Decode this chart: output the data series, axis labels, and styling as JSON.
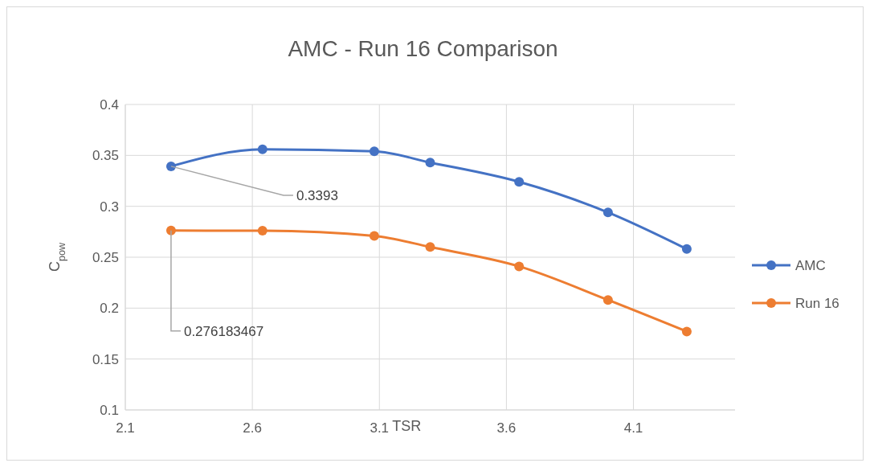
{
  "chart_data": {
    "type": "line",
    "title": "AMC - Run 16 Comparison",
    "xlabel": "TSR",
    "ylabel": "C$_{pow}$",
    "x": [
      2.28,
      2.64,
      3.08,
      3.3,
      3.65,
      4.0,
      4.31
    ],
    "series": [
      {
        "name": "AMC",
        "color": "#4472c4",
        "values": [
          0.3393,
          0.356,
          0.354,
          0.343,
          0.324,
          0.294,
          0.258
        ]
      },
      {
        "name": "Run 16",
        "color": "#ed7d31",
        "values": [
          0.276183467,
          0.276,
          0.271,
          0.26,
          0.241,
          0.208,
          0.177
        ]
      }
    ],
    "annotations": [
      {
        "text": "0.3393",
        "x": 2.28,
        "y": 0.3393
      },
      {
        "text": "0.276183467",
        "x": 2.28,
        "y": 0.276183467
      }
    ],
    "xlim": [
      2.1,
      4.5
    ],
    "xticks": [
      2.1,
      2.6,
      3.1,
      3.6,
      4.1
    ],
    "ylim": [
      0.1,
      0.4
    ],
    "yticks": [
      0.1,
      0.15,
      0.2,
      0.25,
      0.3,
      0.35,
      0.4
    ],
    "grid": true,
    "legend": "right",
    "marker": "circle",
    "line_style": "solid"
  }
}
